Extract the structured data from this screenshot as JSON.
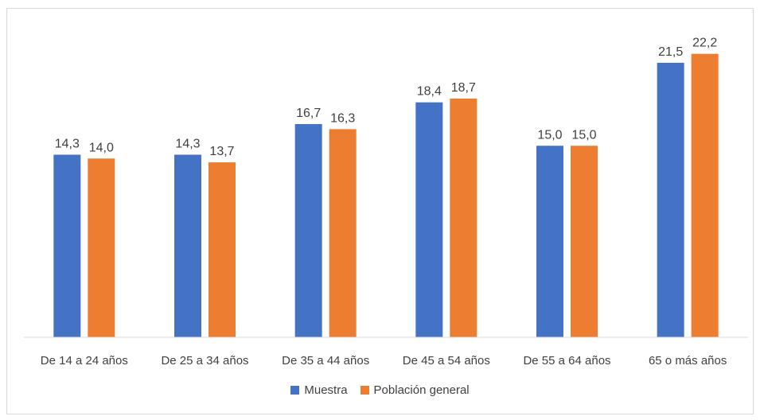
{
  "chart_data": {
    "type": "bar",
    "categories": [
      "De 14 a 24 años",
      "De 25 a 34 años",
      "De 35 a 44 años",
      "De 45 a 54 años",
      "De 55 a 64 años",
      "65 o más años"
    ],
    "series": [
      {
        "name": "Muestra",
        "values": [
          14.3,
          14.3,
          16.7,
          18.4,
          15.0,
          21.5
        ],
        "labels": [
          "14,3",
          "14,3",
          "16,7",
          "18,4",
          "15,0",
          "21,5"
        ],
        "color": "#4472c4"
      },
      {
        "name": "Población general",
        "values": [
          14.0,
          13.7,
          16.3,
          18.7,
          15.0,
          22.2
        ],
        "labels": [
          "14,0",
          "13,7",
          "16,3",
          "18,7",
          "15,0",
          "22,2"
        ],
        "color": "#ed7d31"
      }
    ],
    "title": "",
    "xlabel": "",
    "ylabel": "",
    "ylim": [
      0,
      24
    ],
    "grid": false,
    "legend": "bottom"
  }
}
